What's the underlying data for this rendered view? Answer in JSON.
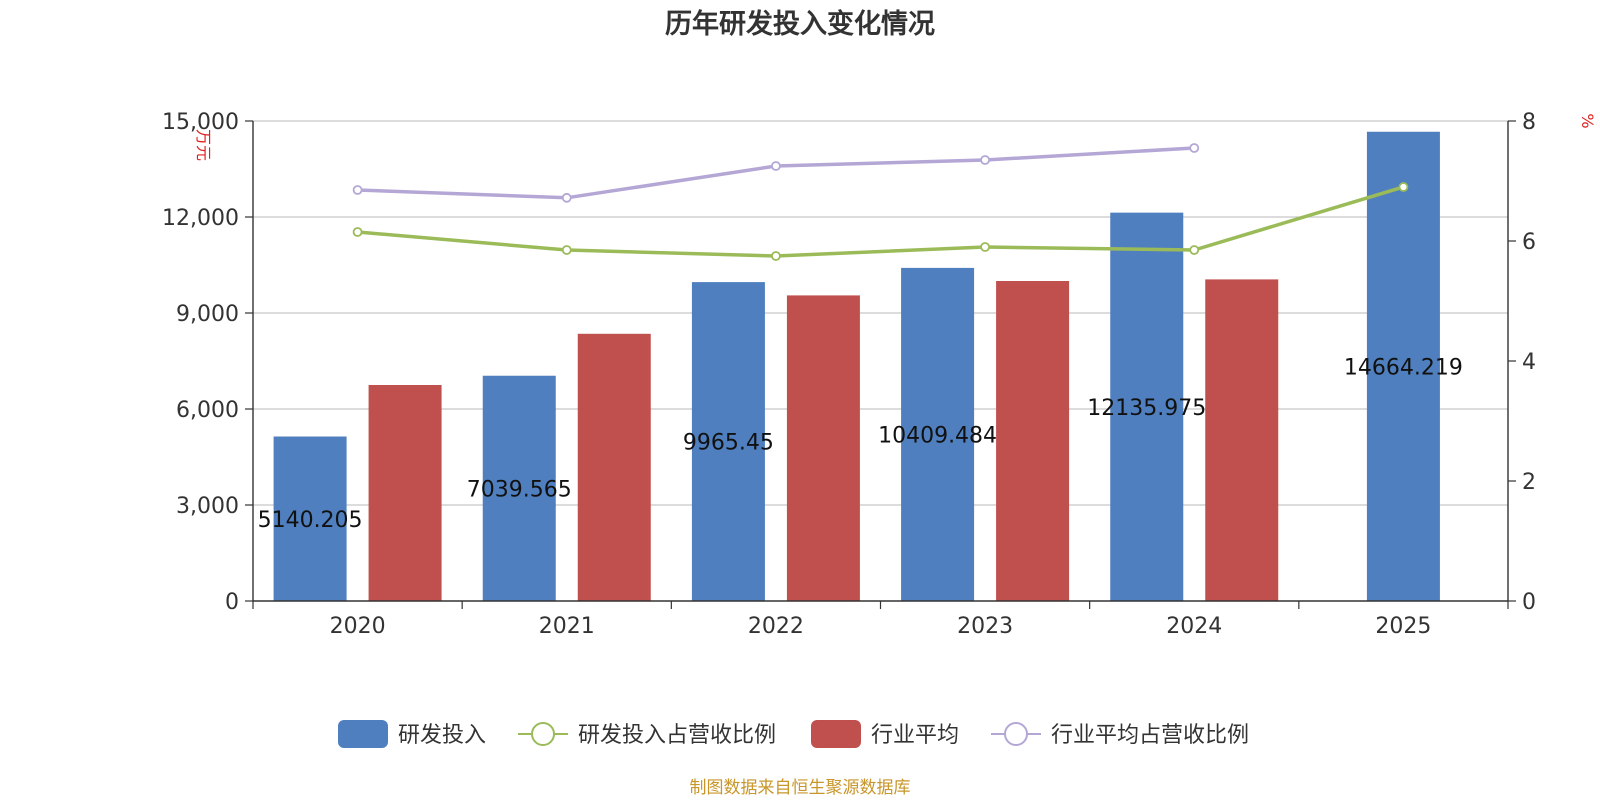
{
  "chart_data": {
    "type": "bar",
    "title": "历年研发投入变化情况",
    "left_axis_unit": "万元",
    "right_axis_unit": "%",
    "categories": [
      "2020",
      "2021",
      "2022",
      "2023",
      "2024",
      "2025"
    ],
    "left_axis": {
      "ylim": [
        0,
        15000
      ],
      "ticks": [
        0,
        3000,
        6000,
        9000,
        12000,
        15000
      ],
      "tick_labels": [
        "0",
        "3,000",
        "6,000",
        "9,000",
        "12,000",
        "15,000"
      ]
    },
    "right_axis": {
      "ylim": [
        0,
        8
      ],
      "ticks": [
        0,
        2,
        4,
        6,
        8
      ],
      "tick_labels": [
        "0",
        "2",
        "4",
        "6",
        "8"
      ]
    },
    "grid": true,
    "legend_position": "bottom",
    "series": [
      {
        "name": "研发投入",
        "type": "bar",
        "axis": "left",
        "color": "#4f7fbe",
        "values": [
          5140.205,
          7039.565,
          9965.45,
          10409.484,
          12135.975,
          14664.219
        ],
        "labels": [
          "5140.205",
          "7039.565",
          "9965.45",
          "10409.484",
          "12135.975",
          "14664.219"
        ]
      },
      {
        "name": "研发投入占营收比例",
        "type": "line",
        "axis": "right",
        "color": "#9bbb59",
        "values": [
          6.15,
          5.85,
          5.75,
          5.9,
          5.85,
          6.9
        ]
      },
      {
        "name": "行业平均",
        "type": "bar",
        "axis": "left",
        "color": "#c0504d",
        "values": [
          6750,
          8350,
          9550,
          10000,
          10050,
          null
        ]
      },
      {
        "name": "行业平均占营收比例",
        "type": "line",
        "axis": "right",
        "color": "#b4a7d6",
        "values": [
          6.85,
          6.72,
          7.25,
          7.35,
          7.55,
          null
        ]
      }
    ],
    "source": "制图数据来自恒生聚源数据库"
  }
}
